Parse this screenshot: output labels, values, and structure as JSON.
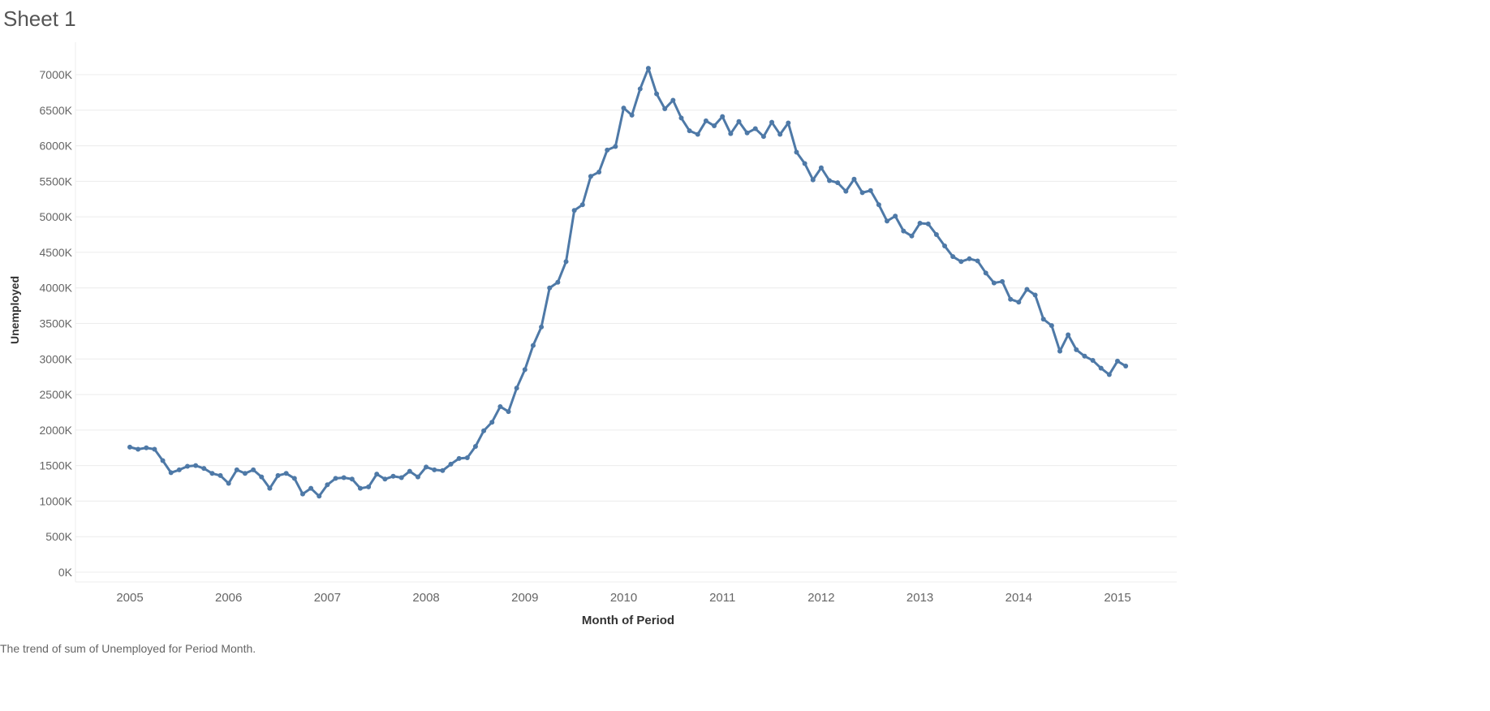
{
  "sheet": {
    "title": "Sheet 1",
    "caption": "The trend of sum of Unemployed for Period Month."
  },
  "colors": {
    "line": "#4e79a7",
    "grid": "#ececec",
    "tick_text": "#666666",
    "axis_title": "#333333"
  },
  "chart_data": {
    "type": "line",
    "title": "",
    "xlabel": "Month of Period",
    "ylabel": "Unemployed",
    "ylim": [
      0,
      7500000
    ],
    "y_ticks": [
      0,
      500000,
      1000000,
      1500000,
      2000000,
      2500000,
      3000000,
      3500000,
      4000000,
      4500000,
      5000000,
      5500000,
      6000000,
      6500000,
      7000000
    ],
    "y_tick_labels": [
      "0K",
      "500K",
      "1000K",
      "1500K",
      "2000K",
      "2500K",
      "3000K",
      "3500K",
      "4000K",
      "4500K",
      "5000K",
      "5500K",
      "6000K",
      "6500K",
      "7000K"
    ],
    "x_ticks": [
      "2005",
      "2006",
      "2007",
      "2008",
      "2009",
      "2010",
      "2011",
      "2012",
      "2013",
      "2014",
      "2015"
    ],
    "xlim": [
      "2004-07",
      "2015-08"
    ],
    "grid": true,
    "legend": "none",
    "marker": "circle",
    "series": [
      {
        "x": [
          "2005-01",
          "2005-02",
          "2005-03",
          "2005-04",
          "2005-05",
          "2005-06",
          "2005-07",
          "2005-08",
          "2005-09",
          "2005-10",
          "2005-11",
          "2005-12",
          "2006-01",
          "2006-02",
          "2006-03",
          "2006-04",
          "2006-05",
          "2006-06",
          "2006-07",
          "2006-08",
          "2006-09",
          "2006-10",
          "2006-11",
          "2006-12",
          "2007-01",
          "2007-02",
          "2007-03",
          "2007-04",
          "2007-05",
          "2007-06",
          "2007-07",
          "2007-08",
          "2007-09",
          "2007-10",
          "2007-11",
          "2007-12",
          "2008-01",
          "2008-02",
          "2008-03",
          "2008-04",
          "2008-05",
          "2008-06",
          "2008-07",
          "2008-08",
          "2008-09",
          "2008-10",
          "2008-11",
          "2008-12",
          "2009-01",
          "2009-02",
          "2009-03",
          "2009-04",
          "2009-05",
          "2009-06",
          "2009-07",
          "2009-08",
          "2009-09",
          "2009-10",
          "2009-11",
          "2009-12",
          "2010-01",
          "2010-02",
          "2010-03",
          "2010-04",
          "2010-05",
          "2010-06",
          "2010-07",
          "2010-08",
          "2010-09",
          "2010-10",
          "2010-11",
          "2010-12",
          "2011-01",
          "2011-02",
          "2011-03",
          "2011-04",
          "2011-05",
          "2011-06",
          "2011-07",
          "2011-08",
          "2011-09",
          "2011-10",
          "2011-11",
          "2011-12",
          "2012-01",
          "2012-02",
          "2012-03",
          "2012-04",
          "2012-05",
          "2012-06",
          "2012-07",
          "2012-08",
          "2012-09",
          "2012-10",
          "2012-11",
          "2012-12",
          "2013-01",
          "2013-02",
          "2013-03",
          "2013-04",
          "2013-05",
          "2013-06",
          "2013-07",
          "2013-08",
          "2013-09",
          "2013-10",
          "2013-11",
          "2013-12",
          "2014-01",
          "2014-02",
          "2014-03",
          "2014-04",
          "2014-05",
          "2014-06",
          "2014-07",
          "2014-08",
          "2014-09",
          "2014-10",
          "2014-11",
          "2014-12",
          "2015-01",
          "2015-02"
        ],
        "values": [
          1760000,
          1730000,
          1750000,
          1730000,
          1570000,
          1400000,
          1440000,
          1490000,
          1500000,
          1460000,
          1390000,
          1360000,
          1250000,
          1440000,
          1390000,
          1440000,
          1340000,
          1180000,
          1360000,
          1390000,
          1320000,
          1100000,
          1180000,
          1070000,
          1230000,
          1320000,
          1330000,
          1310000,
          1180000,
          1200000,
          1380000,
          1310000,
          1350000,
          1330000,
          1420000,
          1340000,
          1480000,
          1440000,
          1430000,
          1520000,
          1600000,
          1610000,
          1770000,
          1990000,
          2110000,
          2330000,
          2260000,
          2590000,
          2850000,
          3190000,
          3450000,
          4000000,
          4080000,
          4370000,
          5090000,
          5170000,
          5570000,
          5630000,
          5940000,
          5990000,
          6530000,
          6430000,
          6800000,
          7090000,
          6730000,
          6520000,
          6640000,
          6390000,
          6210000,
          6160000,
          6350000,
          6280000,
          6410000,
          6170000,
          6340000,
          6180000,
          6240000,
          6130000,
          6330000,
          6160000,
          6320000,
          5910000,
          5750000,
          5520000,
          5690000,
          5510000,
          5480000,
          5360000,
          5530000,
          5340000,
          5370000,
          5170000,
          4940000,
          5010000,
          4800000,
          4730000,
          4910000,
          4900000,
          4750000,
          4590000,
          4440000,
          4370000,
          4410000,
          4380000,
          4210000,
          4070000,
          4090000,
          3840000,
          3800000,
          3980000,
          3900000,
          3560000,
          3470000,
          3110000,
          3340000,
          3130000,
          3040000,
          2980000,
          2870000,
          2780000,
          2970000,
          2900000
        ]
      }
    ]
  }
}
